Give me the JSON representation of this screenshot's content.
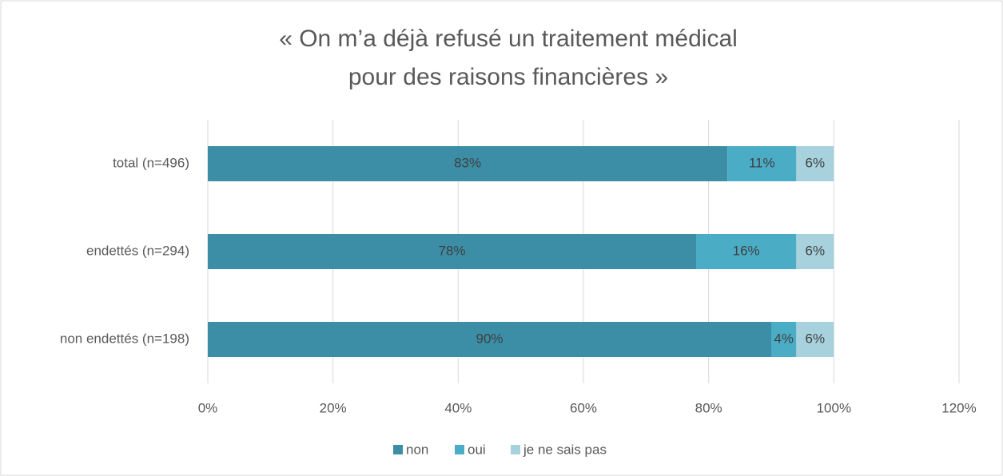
{
  "chart_data": {
    "type": "stacked_barh",
    "title": [
      "« On m’a déjà refusé un traitement médical",
      "pour des raisons financières »"
    ],
    "categories": [
      "total (n=496)",
      "endettés (n=294)",
      "non endettés (n=198)"
    ],
    "series": [
      {
        "name": "non",
        "color": "#3b8ea5",
        "values": [
          83,
          78,
          90
        ],
        "value_labels": [
          "83%",
          "78%",
          "90%"
        ]
      },
      {
        "name": "oui",
        "color": "#4bacc6",
        "values": [
          11,
          16,
          4
        ],
        "value_labels": [
          "11%",
          "16%",
          "4%"
        ]
      },
      {
        "name": "je ne sais pas",
        "color": "#a7d2dd",
        "values": [
          6,
          6,
          6
        ],
        "value_labels": [
          "6%",
          "6%",
          "6%"
        ]
      }
    ],
    "xlim": [
      0,
      120
    ],
    "xticks": [
      {
        "value": 0,
        "label": "0%"
      },
      {
        "value": 20,
        "label": "20%"
      },
      {
        "value": 40,
        "label": "40%"
      },
      {
        "value": 60,
        "label": "60%"
      },
      {
        "value": 80,
        "label": "80%"
      },
      {
        "value": 100,
        "label": "100%"
      },
      {
        "value": 120,
        "label": "120%"
      }
    ],
    "grid": true,
    "legend": "bottom"
  }
}
